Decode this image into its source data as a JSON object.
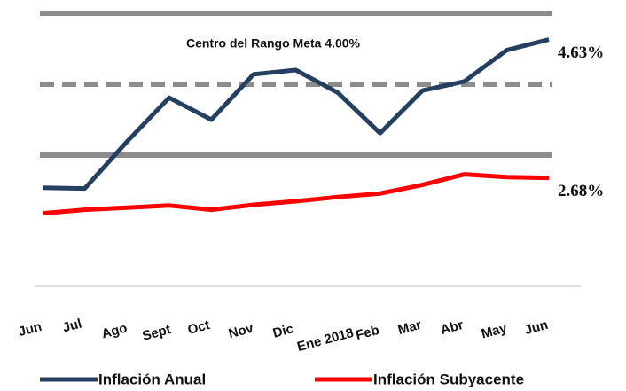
{
  "chart_data": {
    "type": "line",
    "annotation": "Centro del Rango Meta  4.00%",
    "categories": [
      "Jun",
      "Jul",
      "Ago",
      "Sept",
      "Oct",
      "Nov",
      "Dic",
      "Ene 2018",
      "Feb",
      "Mar",
      "Abr",
      "May",
      "Jun"
    ],
    "series": [
      {
        "name": "Inflación Anual",
        "color": "#243f60",
        "values": [
          2.54,
          2.53,
          3.19,
          3.81,
          3.5,
          4.14,
          4.2,
          3.88,
          3.31,
          3.91,
          4.04,
          4.48,
          4.63
        ],
        "value_labels": [
          null,
          null,
          null,
          null,
          null,
          null,
          null,
          null,
          null,
          null,
          null,
          null,
          "4.63%"
        ]
      },
      {
        "name": "Inflación Subyacente",
        "color": "#ff0000",
        "values": [
          2.18,
          2.23,
          2.26,
          2.29,
          2.23,
          2.3,
          2.35,
          2.41,
          2.46,
          2.58,
          2.73,
          2.69,
          2.68
        ],
        "value_labels": [
          null,
          null,
          null,
          null,
          null,
          null,
          null,
          null,
          null,
          null,
          null,
          null,
          "2.68%"
        ]
      }
    ],
    "reference_lines": [
      {
        "value": 5,
        "style": "solid",
        "color": "#8c8c8c"
      },
      {
        "value": 4,
        "style": "dashed",
        "color": "#8c8c8c"
      },
      {
        "value": 3,
        "style": "solid",
        "color": "#8c8c8c"
      }
    ],
    "ylim": [
      1.15,
      5.15
    ]
  }
}
